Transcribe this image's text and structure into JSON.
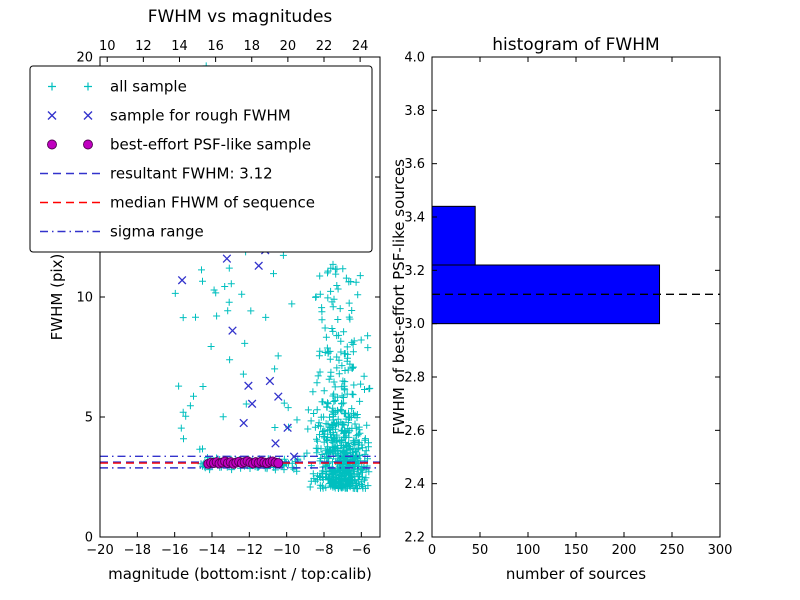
{
  "figure": {
    "background": "#ffffff"
  },
  "chart_data": [
    {
      "id": "fwhm_vs_magnitudes",
      "type": "scatter",
      "title": "FWHM vs magnitudes",
      "xlabel": "magnitude (bottom:isnt / top:calib)",
      "ylabel": "FWHM (pix)",
      "xlim": [
        -20,
        -5
      ],
      "ylim": [
        0,
        20
      ],
      "xticks": [
        -20,
        -18,
        -16,
        -14,
        -12,
        -10,
        -8,
        -6
      ],
      "yticks": [
        0,
        5,
        10,
        15,
        20
      ],
      "top_axis_lim": [
        9.6,
        25.1
      ],
      "top_axis_ticks": [
        10,
        12,
        14,
        16,
        18,
        20,
        22,
        24
      ],
      "grid": false,
      "legend_position": "upper left",
      "series": [
        {
          "name": "all sample",
          "marker": "+",
          "color": "#00bfbf",
          "clusters": [
            {
              "n": 560,
              "x": {
                "type": "gauss",
                "mean": -7.1,
                "std": 0.75,
                "min": -9.4,
                "max": -5.55
              },
              "y": {
                "type": "expshift",
                "base": 2.0,
                "scale": 2.1,
                "min": 1.7,
                "max": 19.9
              }
            },
            {
              "n": 90,
              "x": {
                "type": "uniform",
                "min": -14.6,
                "max": -9.4
              },
              "y": {
                "type": "gauss",
                "mean": 3.05,
                "std": 0.16,
                "min": 2.6,
                "max": 3.6
              }
            },
            {
              "n": 42,
              "x": {
                "type": "uniform",
                "min": -16.1,
                "max": -9.4
              },
              "y": {
                "type": "uniform",
                "min": 3.4,
                "max": 13.5
              }
            },
            {
              "n": 70,
              "x": {
                "type": "gauss",
                "mean": -7.5,
                "std": 0.55,
                "min": -8.9,
                "max": -6.0
              },
              "y": {
                "type": "uniform",
                "min": 7.5,
                "max": 19.9
              }
            },
            {
              "n": 8,
              "x": {
                "type": "uniform",
                "min": -16.0,
                "max": -12.2
              },
              "y": {
                "type": "uniform",
                "min": 9.0,
                "max": 19.8
              }
            },
            {
              "n": 40,
              "x": {
                "type": "gauss",
                "mean": -6.6,
                "std": 0.5,
                "min": -7.8,
                "max": -5.6
              },
              "y": {
                "type": "gauss",
                "mean": 2.9,
                "std": 0.5,
                "min": 1.9,
                "max": 4.5
              }
            }
          ]
        },
        {
          "name": "sample for rough FWHM",
          "marker": "x",
          "color": "#3333cc",
          "points": [
            [
              -15.6,
              10.7
            ],
            [
              -13.2,
              11.6
            ],
            [
              -11.5,
              11.3
            ],
            [
              -11.15,
              11.95
            ],
            [
              -12.9,
              8.6
            ],
            [
              -12.05,
              6.3
            ],
            [
              -11.85,
              5.55
            ],
            [
              -12.3,
              4.75
            ],
            [
              -10.9,
              6.5
            ],
            [
              -10.45,
              5.85
            ],
            [
              -9.95,
              4.55
            ],
            [
              -10.6,
              3.9
            ],
            [
              -9.6,
              3.35
            ],
            [
              -8.1,
              12.6
            ]
          ]
        },
        {
          "name": "best-effort PSF-like sample",
          "marker": "circle",
          "color": "#c000c0",
          "edge_color": "#500050",
          "points": [
            [
              -14.2,
              3.05
            ],
            [
              -14.05,
              3.1
            ],
            [
              -13.9,
              3.08
            ],
            [
              -13.75,
              3.12
            ],
            [
              -13.6,
              3.06
            ],
            [
              -13.45,
              3.1
            ],
            [
              -13.3,
              3.15
            ],
            [
              -13.15,
              3.08
            ],
            [
              -13.0,
              3.12
            ],
            [
              -12.85,
              3.05
            ],
            [
              -12.7,
              3.1
            ],
            [
              -12.55,
              3.14
            ],
            [
              -12.4,
              3.08
            ],
            [
              -12.25,
              3.12
            ],
            [
              -12.1,
              3.16
            ],
            [
              -11.95,
              3.1
            ],
            [
              -11.8,
              3.06
            ],
            [
              -11.65,
              3.12
            ],
            [
              -11.5,
              3.09
            ],
            [
              -11.35,
              3.14
            ],
            [
              -11.2,
              3.1
            ],
            [
              -11.05,
              3.07
            ],
            [
              -10.9,
              3.12
            ],
            [
              -10.75,
              3.15
            ],
            [
              -10.6,
              3.1
            ],
            [
              -10.45,
              3.08
            ]
          ]
        }
      ],
      "lines": [
        {
          "name": "resultant FWHM: 3.12",
          "y": 3.12,
          "style": "dashed",
          "color": "#3333cc"
        },
        {
          "name": "median FHWM of sequence",
          "y": 3.08,
          "style": "dashed",
          "color": "#ff0000"
        },
        {
          "name": "sigma range",
          "y": [
            2.88,
            3.36
          ],
          "style": "dashdot",
          "color": "#3333cc"
        }
      ]
    },
    {
      "id": "histogram_of_fwhm",
      "type": "bar-horizontal",
      "title": "histogram of FWHM",
      "xlabel": "number of sources",
      "ylabel": "FWHM of best-effort PSF-like sources",
      "xlim": [
        0,
        300
      ],
      "ylim": [
        2.2,
        4.0
      ],
      "xticks": [
        0,
        50,
        100,
        150,
        200,
        250,
        300
      ],
      "yticks": [
        2.2,
        2.4,
        2.6,
        2.8,
        3.0,
        3.2,
        3.4,
        3.6,
        3.8,
        4.0
      ],
      "ytick_format": "fixed1",
      "grid": false,
      "bar_color": "#0000ff",
      "bar_edge_color": "#000000",
      "bars": [
        {
          "from": 3.0,
          "to": 3.22,
          "count": 237
        },
        {
          "from": 3.22,
          "to": 3.44,
          "count": 45
        }
      ],
      "dashed_line_y": 3.11,
      "dashed_line_color": "#000000"
    }
  ]
}
